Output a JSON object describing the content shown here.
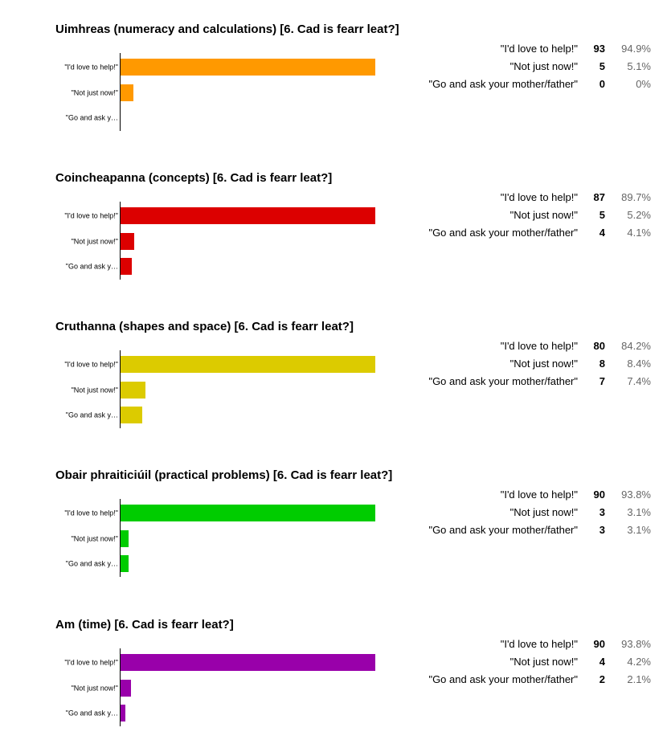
{
  "chart_data": [
    {
      "type": "bar",
      "orientation": "horizontal",
      "title": "Uimhreas (numeracy and calculations) [6. Cad is fearr leat?]",
      "color": "#ff9900",
      "categories": [
        "\"I'd love to help!\"",
        "\"Not just now!\"",
        "\"Go and ask y…"
      ],
      "full_labels": [
        "\"I'd love to help!\"",
        "\"Not just now!\"",
        "\"Go and ask your mother/father\""
      ],
      "values": [
        93,
        5,
        0
      ],
      "percents": [
        "94.9%",
        "5.1%",
        "0%"
      ],
      "xlim": [
        0,
        93
      ]
    },
    {
      "type": "bar",
      "orientation": "horizontal",
      "title": "Coincheapanna (concepts) [6. Cad is fearr leat?]",
      "color": "#dc0000",
      "categories": [
        "\"I'd love to help!\"",
        "\"Not just now!\"",
        "\"Go and ask y…"
      ],
      "full_labels": [
        "\"I'd love to help!\"",
        "\"Not just now!\"",
        "\"Go and ask your mother/father\""
      ],
      "values": [
        87,
        5,
        4
      ],
      "percents": [
        "89.7%",
        "5.2%",
        "4.1%"
      ],
      "xlim": [
        0,
        87
      ]
    },
    {
      "type": "bar",
      "orientation": "horizontal",
      "title": "Cruthanna (shapes and space) [6. Cad is fearr leat?]",
      "color": "#dccb00",
      "categories": [
        "\"I'd love to help!\"",
        "\"Not just now!\"",
        "\"Go and ask y…"
      ],
      "full_labels": [
        "\"I'd love to help!\"",
        "\"Not just now!\"",
        "\"Go and ask your mother/father\""
      ],
      "values": [
        80,
        8,
        7
      ],
      "percents": [
        "84.2%",
        "8.4%",
        "7.4%"
      ],
      "xlim": [
        0,
        80
      ]
    },
    {
      "type": "bar",
      "orientation": "horizontal",
      "title": "Obair phraiticiúil (practical problems) [6. Cad is fearr leat?]",
      "color": "#00cc00",
      "categories": [
        "\"I'd love to help!\"",
        "\"Not just now!\"",
        "\"Go and ask y…"
      ],
      "full_labels": [
        "\"I'd love to help!\"",
        "\"Not just now!\"",
        "\"Go and ask your mother/father\""
      ],
      "values": [
        90,
        3,
        3
      ],
      "percents": [
        "93.8%",
        "3.1%",
        "3.1%"
      ],
      "xlim": [
        0,
        90
      ]
    },
    {
      "type": "bar",
      "orientation": "horizontal",
      "title": "Am (time) [6. Cad is fearr leat?]",
      "color": "#9900aa",
      "categories": [
        "\"I'd love to help!\"",
        "\"Not just now!\"",
        "\"Go and ask y…"
      ],
      "full_labels": [
        "\"I'd love to help!\"",
        "\"Not just now!\"",
        "\"Go and ask your mother/father\""
      ],
      "values": [
        90,
        4,
        2
      ],
      "percents": [
        "93.8%",
        "4.2%",
        "2.1%"
      ],
      "xlim": [
        0,
        90
      ]
    }
  ]
}
